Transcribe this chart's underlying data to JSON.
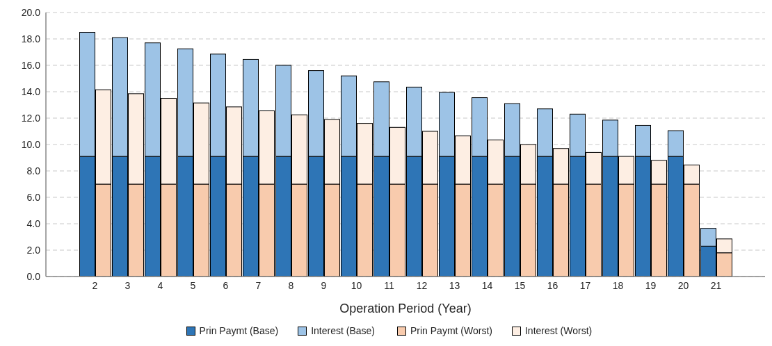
{
  "chart_data": [
    {
      "type": "bar",
      "stacked": true,
      "xlabel": "Operation Period (Year)",
      "categories": [
        null,
        "2",
        "3",
        "4",
        "5",
        "6",
        "7",
        "8",
        "9",
        "10",
        "11",
        "12",
        "13",
        "14",
        "15",
        "16",
        "17",
        "18",
        "19",
        "20",
        "21",
        null
      ],
      "series": [
        {
          "name": "Prin Paymt (Base)",
          "color": "#2e75b6",
          "values": [
            null,
            9.1,
            9.1,
            9.1,
            9.1,
            9.1,
            9.1,
            9.1,
            9.1,
            9.1,
            9.1,
            9.1,
            9.1,
            9.1,
            9.1,
            9.1,
            9.1,
            9.1,
            9.1,
            9.1,
            2.3,
            null
          ]
        },
        {
          "name": "Interest (Base)",
          "color": "#9dc3e6",
          "values": [
            null,
            9.4,
            9.0,
            8.6,
            8.15,
            7.75,
            7.35,
            6.9,
            6.5,
            6.1,
            5.65,
            5.25,
            4.85,
            4.45,
            4.0,
            3.6,
            3.2,
            2.75,
            2.35,
            1.95,
            1.35,
            null
          ]
        }
      ],
      "ylim": [
        0,
        20
      ],
      "yticks": [
        {
          "value": 0,
          "label": "0.0"
        },
        {
          "value": 2,
          "label": "2.0"
        },
        {
          "value": 4,
          "label": "4.0"
        },
        {
          "value": 6,
          "label": "6.0"
        },
        {
          "value": 8,
          "label": "8.0"
        },
        {
          "value": 10,
          "label": "10.0"
        },
        {
          "value": 12,
          "label": "12.0"
        },
        {
          "value": 14,
          "label": "14.0"
        },
        {
          "value": 16,
          "label": "16.0"
        },
        {
          "value": 18,
          "label": "18.0"
        },
        {
          "value": 20,
          "label": "20.0"
        }
      ],
      "grid": "y",
      "legend": "bottom"
    },
    {
      "type": "bar",
      "stacked": true,
      "tick_labels": false,
      "categories": [
        null,
        "2",
        "3",
        "4",
        "5",
        "6",
        "7",
        "8",
        "9",
        "10",
        "11",
        "12",
        "13",
        "14",
        "15",
        "16",
        "17",
        "18",
        "19",
        "20",
        "21",
        null
      ],
      "series": [
        {
          "name": "Prin Paymt (Worst)",
          "color": "#f8cbad",
          "values": [
            null,
            7.0,
            7.0,
            7.0,
            7.0,
            7.0,
            7.0,
            7.0,
            7.0,
            7.0,
            7.0,
            7.0,
            7.0,
            7.0,
            7.0,
            7.0,
            7.0,
            7.0,
            7.0,
            7.0,
            1.8,
            null
          ]
        },
        {
          "name": "Interest (Worst)",
          "color": "#fdeee3",
          "values": [
            null,
            7.15,
            6.85,
            6.5,
            6.15,
            5.85,
            5.55,
            5.25,
            4.9,
            4.6,
            4.3,
            4.0,
            3.65,
            3.35,
            3.0,
            2.7,
            2.4,
            2.1,
            1.8,
            1.45,
            1.05,
            null
          ]
        }
      ],
      "ylim": [
        0,
        20
      ],
      "legend": "bottom"
    }
  ]
}
